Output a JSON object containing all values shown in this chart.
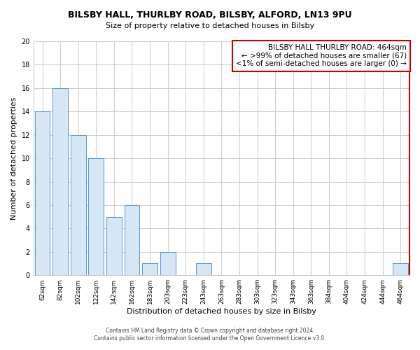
{
  "title": "BILSBY HALL, THURLBY ROAD, BILSBY, ALFORD, LN13 9PU",
  "subtitle": "Size of property relative to detached houses in Bilsby",
  "xlabel": "Distribution of detached houses by size in Bilsby",
  "ylabel": "Number of detached properties",
  "bar_color": "#d6e6f5",
  "bar_edge_color": "#5599cc",
  "categories": [
    "62sqm",
    "82sqm",
    "102sqm",
    "122sqm",
    "142sqm",
    "162sqm",
    "183sqm",
    "203sqm",
    "223sqm",
    "243sqm",
    "263sqm",
    "283sqm",
    "303sqm",
    "323sqm",
    "343sqm",
    "363sqm",
    "384sqm",
    "404sqm",
    "424sqm",
    "444sqm",
    "464sqm"
  ],
  "values": [
    14,
    16,
    12,
    10,
    5,
    6,
    1,
    2,
    0,
    1,
    0,
    0,
    0,
    0,
    0,
    0,
    0,
    0,
    0,
    0,
    1
  ],
  "ylim": [
    0,
    20
  ],
  "yticks": [
    0,
    2,
    4,
    6,
    8,
    10,
    12,
    14,
    16,
    18,
    20
  ],
  "annotation_line1": "BILSBY HALL THURLBY ROAD: 464sqm",
  "annotation_line2": "← >99% of detached houses are smaller (67)",
  "annotation_line3": "<1% of semi-detached houses are larger (0) →",
  "footer_line1": "Contains HM Land Registry data © Crown copyright and database right 2024.",
  "footer_line2": "Contains public sector information licensed under the Open Government Licence v3.0.",
  "grid_color": "#cccccc",
  "bg_color": "#ffffff",
  "plot_bg_color": "#ffffff",
  "spine_right_color": "#cc0000",
  "annotation_border_color": "#cc0000"
}
